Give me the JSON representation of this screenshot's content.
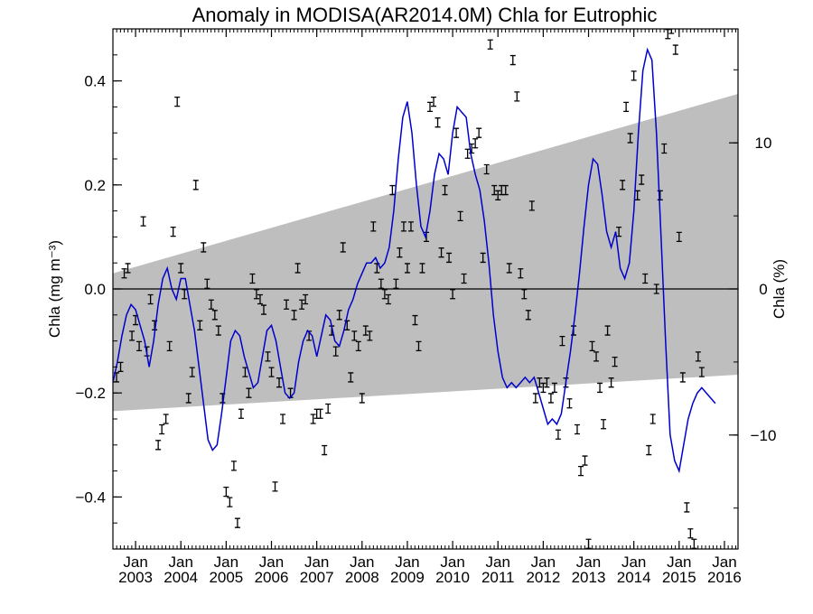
{
  "chart_data": {
    "type": "scatter",
    "title": "Anomaly in MODISA(AR2014.0M) Chla for Eutrophic",
    "ylabel_left": "Chla (mg m⁻³)",
    "ylabel_right": "Chla (%)",
    "xlim": [
      2002.5,
      2016.3
    ],
    "ylim_left": [
      -0.5,
      0.5
    ],
    "ylim_right": [
      -17.8,
      17.8
    ],
    "x_ticks": [
      {
        "x": 2003.0,
        "line1": "Jan",
        "line2": "2003"
      },
      {
        "x": 2004.0,
        "line1": "Jan",
        "line2": "2004"
      },
      {
        "x": 2005.0,
        "line1": "Jan",
        "line2": "2005"
      },
      {
        "x": 2006.0,
        "line1": "Jan",
        "line2": "2006"
      },
      {
        "x": 2007.0,
        "line1": "Jan",
        "line2": "2007"
      },
      {
        "x": 2008.0,
        "line1": "Jan",
        "line2": "2008"
      },
      {
        "x": 2009.0,
        "line1": "Jan",
        "line2": "2009"
      },
      {
        "x": 2010.0,
        "line1": "Jan",
        "line2": "2010"
      },
      {
        "x": 2011.0,
        "line1": "Jan",
        "line2": "2011"
      },
      {
        "x": 2012.0,
        "line1": "Jan",
        "line2": "2012"
      },
      {
        "x": 2013.0,
        "line1": "Jan",
        "line2": "2013"
      },
      {
        "x": 2014.0,
        "line1": "Jan",
        "line2": "2014"
      },
      {
        "x": 2015.0,
        "line1": "Jan",
        "line2": "2015"
      },
      {
        "x": 2016.0,
        "line1": "Jan",
        "line2": "2016"
      }
    ],
    "y_ticks_left": [
      {
        "value": -0.4,
        "label": "−0.4"
      },
      {
        "value": -0.2,
        "label": "−0.2"
      },
      {
        "value": 0.0,
        "label": "0.0"
      },
      {
        "value": 0.2,
        "label": "0.2"
      },
      {
        "value": 0.4,
        "label": "0.4"
      }
    ],
    "y_ticks_right": [
      {
        "value": -10,
        "label": "−10"
      },
      {
        "value": 0,
        "label": "0"
      },
      {
        "value": 10,
        "label": "10"
      }
    ],
    "zero_line": 0.0,
    "trend_band": {
      "x": [
        2002.5,
        2016.3
      ],
      "upper": [
        0.03,
        0.375
      ],
      "lower": [
        -0.235,
        -0.165
      ],
      "color": "#bebebe"
    },
    "points": [
      [
        2002.58,
        -0.17
      ],
      [
        2002.67,
        -0.15
      ],
      [
        2002.75,
        0.03
      ],
      [
        2002.83,
        0.04
      ],
      [
        2002.92,
        -0.09
      ],
      [
        2003.0,
        -0.06
      ],
      [
        2003.08,
        -0.11
      ],
      [
        2003.17,
        0.13
      ],
      [
        2003.25,
        -0.12
      ],
      [
        2003.33,
        -0.02
      ],
      [
        2003.42,
        -0.07
      ],
      [
        2003.5,
        -0.3
      ],
      [
        2003.58,
        -0.27
      ],
      [
        2003.67,
        -0.25
      ],
      [
        2003.75,
        -0.11
      ],
      [
        2003.83,
        0.11
      ],
      [
        2003.92,
        0.36
      ],
      [
        2004.0,
        0.04
      ],
      [
        2004.08,
        -0.01
      ],
      [
        2004.17,
        -0.21
      ],
      [
        2004.25,
        -0.16
      ],
      [
        2004.33,
        0.2
      ],
      [
        2004.42,
        -0.07
      ],
      [
        2004.5,
        0.08
      ],
      [
        2004.58,
        0.01
      ],
      [
        2004.67,
        -0.03
      ],
      [
        2004.75,
        -0.05
      ],
      [
        2004.83,
        -0.08
      ],
      [
        2004.92,
        -0.21
      ],
      [
        2005.0,
        -0.39
      ],
      [
        2005.08,
        -0.41
      ],
      [
        2005.17,
        -0.34
      ],
      [
        2005.25,
        -0.45
      ],
      [
        2005.33,
        -0.24
      ],
      [
        2005.42,
        -0.16
      ],
      [
        2005.5,
        -0.2
      ],
      [
        2005.58,
        0.02
      ],
      [
        2005.67,
        -0.01
      ],
      [
        2005.75,
        -0.02
      ],
      [
        2005.83,
        -0.04
      ],
      [
        2005.92,
        -0.13
      ],
      [
        2006.0,
        -0.16
      ],
      [
        2006.08,
        -0.38
      ],
      [
        2006.17,
        -0.18
      ],
      [
        2006.25,
        -0.25
      ],
      [
        2006.33,
        -0.03
      ],
      [
        2006.42,
        -0.2
      ],
      [
        2006.5,
        -0.05
      ],
      [
        2006.58,
        0.04
      ],
      [
        2006.67,
        -0.03
      ],
      [
        2006.75,
        -0.02
      ],
      [
        2006.83,
        -0.09
      ],
      [
        2006.92,
        -0.25
      ],
      [
        2007.0,
        -0.24
      ],
      [
        2007.08,
        -0.24
      ],
      [
        2007.17,
        -0.31
      ],
      [
        2007.25,
        -0.23
      ],
      [
        2007.33,
        -0.08
      ],
      [
        2007.42,
        -0.12
      ],
      [
        2007.5,
        -0.05
      ],
      [
        2007.58,
        0.08
      ],
      [
        2007.67,
        -0.07
      ],
      [
        2007.75,
        -0.17
      ],
      [
        2007.83,
        -0.09
      ],
      [
        2007.92,
        -0.11
      ],
      [
        2008.0,
        -0.21
      ],
      [
        2008.08,
        -0.08
      ],
      [
        2008.17,
        -0.09
      ],
      [
        2008.25,
        0.12
      ],
      [
        2008.33,
        0.04
      ],
      [
        2008.42,
        0.01
      ],
      [
        2008.5,
        -0.01
      ],
      [
        2008.58,
        -0.02
      ],
      [
        2008.67,
        0.19
      ],
      [
        2008.75,
        0.01
      ],
      [
        2008.83,
        0.07
      ],
      [
        2008.92,
        0.12
      ],
      [
        2009.0,
        0.04
      ],
      [
        2009.08,
        0.12
      ],
      [
        2009.17,
        -0.06
      ],
      [
        2009.25,
        -0.11
      ],
      [
        2009.33,
        0.04
      ],
      [
        2009.42,
        0.1
      ],
      [
        2009.5,
        0.35
      ],
      [
        2009.58,
        0.36
      ],
      [
        2009.67,
        0.32
      ],
      [
        2009.75,
        0.07
      ],
      [
        2009.83,
        0.19
      ],
      [
        2009.92,
        0.06
      ],
      [
        2010.0,
        -0.01
      ],
      [
        2010.08,
        0.3
      ],
      [
        2010.17,
        0.14
      ],
      [
        2010.25,
        0.02
      ],
      [
        2010.33,
        0.26
      ],
      [
        2010.42,
        0.27
      ],
      [
        2010.5,
        0.28
      ],
      [
        2010.58,
        0.3
      ],
      [
        2010.67,
        0.06
      ],
      [
        2010.75,
        0.23
      ],
      [
        2010.83,
        0.47
      ],
      [
        2010.92,
        0.19
      ],
      [
        2011.0,
        0.18
      ],
      [
        2011.08,
        0.19
      ],
      [
        2011.17,
        0.19
      ],
      [
        2011.25,
        0.04
      ],
      [
        2011.33,
        0.44
      ],
      [
        2011.42,
        0.37
      ],
      [
        2011.5,
        0.03
      ],
      [
        2011.58,
        -0.01
      ],
      [
        2011.67,
        -0.05
      ],
      [
        2011.75,
        0.16
      ],
      [
        2011.83,
        -0.21
      ],
      [
        2011.92,
        -0.18
      ],
      [
        2012.0,
        -0.19
      ],
      [
        2012.08,
        -0.18
      ],
      [
        2012.17,
        -0.21
      ],
      [
        2012.25,
        -0.19
      ],
      [
        2012.33,
        -0.28
      ],
      [
        2012.42,
        -0.1
      ],
      [
        2012.5,
        -0.18
      ],
      [
        2012.58,
        -0.22
      ],
      [
        2012.67,
        -0.08
      ],
      [
        2012.75,
        -0.27
      ],
      [
        2012.83,
        -0.35
      ],
      [
        2012.92,
        -0.33
      ],
      [
        2013.0,
        -0.49
      ],
      [
        2013.08,
        -0.11
      ],
      [
        2013.17,
        -0.13
      ],
      [
        2013.25,
        -0.19
      ],
      [
        2013.33,
        -0.26
      ],
      [
        2013.42,
        -0.08
      ],
      [
        2013.5,
        -0.18
      ],
      [
        2013.58,
        -0.14
      ],
      [
        2013.67,
        0.11
      ],
      [
        2013.75,
        0.2
      ],
      [
        2013.83,
        0.35
      ],
      [
        2013.92,
        0.29
      ],
      [
        2014.0,
        0.41
      ],
      [
        2014.08,
        0.18
      ],
      [
        2014.17,
        0.21
      ],
      [
        2014.25,
        0.02
      ],
      [
        2014.33,
        -0.31
      ],
      [
        2014.42,
        -0.25
      ],
      [
        2014.5,
        0.0
      ],
      [
        2014.58,
        0.18
      ],
      [
        2014.67,
        0.27
      ],
      [
        2014.75,
        0.49
      ],
      [
        2014.83,
        0.5
      ],
      [
        2014.92,
        0.46
      ],
      [
        2015.0,
        0.1
      ],
      [
        2015.08,
        -0.17
      ],
      [
        2015.17,
        -0.42
      ],
      [
        2015.25,
        -0.47
      ],
      [
        2015.33,
        -0.49
      ],
      [
        2015.42,
        -0.13
      ],
      [
        2015.5,
        -0.16
      ]
    ],
    "smoothed": {
      "x": [
        2002.5,
        2002.6,
        2002.7,
        2002.8,
        2002.9,
        2003.0,
        2003.1,
        2003.2,
        2003.3,
        2003.4,
        2003.5,
        2003.6,
        2003.7,
        2003.8,
        2003.9,
        2004.0,
        2004.1,
        2004.2,
        2004.3,
        2004.4,
        2004.5,
        2004.6,
        2004.7,
        2004.8,
        2004.9,
        2005.0,
        2005.1,
        2005.2,
        2005.3,
        2005.4,
        2005.5,
        2005.6,
        2005.7,
        2005.8,
        2005.9,
        2006.0,
        2006.1,
        2006.2,
        2006.3,
        2006.4,
        2006.5,
        2006.6,
        2006.7,
        2006.8,
        2006.9,
        2007.0,
        2007.1,
        2007.2,
        2007.3,
        2007.4,
        2007.5,
        2007.6,
        2007.7,
        2007.8,
        2007.9,
        2008.0,
        2008.1,
        2008.2,
        2008.3,
        2008.4,
        2008.5,
        2008.6,
        2008.7,
        2008.8,
        2008.9,
        2009.0,
        2009.1,
        2009.2,
        2009.3,
        2009.4,
        2009.5,
        2009.6,
        2009.7,
        2009.8,
        2009.9,
        2010.0,
        2010.1,
        2010.2,
        2010.3,
        2010.4,
        2010.5,
        2010.6,
        2010.7,
        2010.8,
        2010.9,
        2011.0,
        2011.1,
        2011.2,
        2011.3,
        2011.4,
        2011.5,
        2011.6,
        2011.7,
        2011.8,
        2011.9,
        2012.0,
        2012.1,
        2012.2,
        2012.3,
        2012.4,
        2012.5,
        2012.6,
        2012.7,
        2012.8,
        2012.9,
        2013.0,
        2013.1,
        2013.2,
        2013.3,
        2013.4,
        2013.5,
        2013.6,
        2013.7,
        2013.8,
        2013.9,
        2014.0,
        2014.1,
        2014.2,
        2014.3,
        2014.4,
        2014.5,
        2014.6,
        2014.7,
        2014.8,
        2014.9,
        2015.0,
        2015.1,
        2015.2,
        2015.3,
        2015.4,
        2015.5,
        2015.6,
        2015.7,
        2015.8
      ],
      "y": [
        -0.18,
        -0.14,
        -0.09,
        -0.05,
        -0.03,
        -0.04,
        -0.07,
        -0.1,
        -0.15,
        -0.1,
        -0.03,
        0.02,
        0.04,
        0.0,
        -0.02,
        0.02,
        0.02,
        -0.03,
        -0.08,
        -0.15,
        -0.22,
        -0.29,
        -0.31,
        -0.3,
        -0.24,
        -0.17,
        -0.1,
        -0.08,
        -0.09,
        -0.13,
        -0.16,
        -0.19,
        -0.18,
        -0.13,
        -0.08,
        -0.07,
        -0.1,
        -0.15,
        -0.2,
        -0.21,
        -0.2,
        -0.14,
        -0.1,
        -0.08,
        -0.09,
        -0.13,
        -0.09,
        -0.05,
        -0.06,
        -0.1,
        -0.11,
        -0.08,
        -0.04,
        -0.02,
        0.01,
        0.03,
        0.05,
        0.05,
        0.06,
        0.04,
        0.05,
        0.08,
        0.15,
        0.25,
        0.33,
        0.36,
        0.3,
        0.2,
        0.12,
        0.1,
        0.15,
        0.22,
        0.26,
        0.25,
        0.22,
        0.3,
        0.35,
        0.34,
        0.33,
        0.26,
        0.22,
        0.19,
        0.13,
        0.05,
        -0.05,
        -0.12,
        -0.17,
        -0.19,
        -0.18,
        -0.19,
        -0.18,
        -0.17,
        -0.18,
        -0.17,
        -0.2,
        -0.23,
        -0.26,
        -0.25,
        -0.26,
        -0.24,
        -0.18,
        -0.12,
        -0.05,
        0.03,
        0.12,
        0.2,
        0.25,
        0.24,
        0.18,
        0.11,
        0.08,
        0.11,
        0.04,
        0.02,
        0.05,
        0.15,
        0.3,
        0.42,
        0.46,
        0.44,
        0.3,
        0.1,
        -0.1,
        -0.28,
        -0.33,
        -0.35,
        -0.3,
        -0.25,
        -0.22,
        -0.2,
        -0.19,
        -0.2,
        -0.21,
        -0.22
      ],
      "color": "#0000cc"
    }
  }
}
